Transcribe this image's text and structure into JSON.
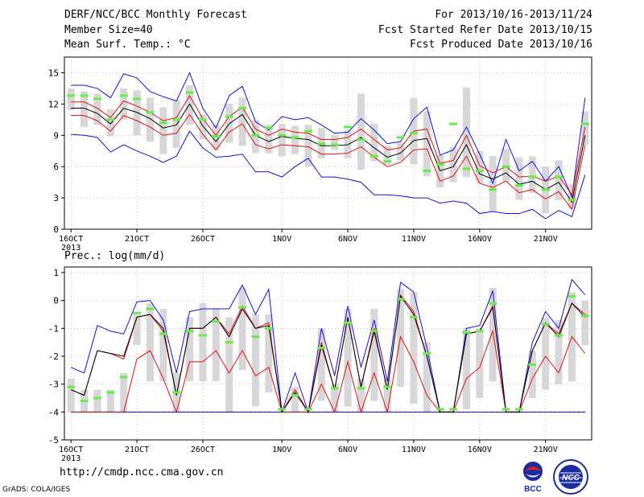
{
  "header": {
    "left": [
      "DERF/NCC/BCC Monthly Forecast",
      "Member Size=40",
      "Mean Surf. Temp.: °C"
    ],
    "right": [
      "For 2013/10/16-2013/11/24",
      "Fcst Started Refer Date 2013/10/15",
      "Fcst Produced Date 2013/10/16"
    ]
  },
  "footer": {
    "url": "http://cmdp.ncc.cma.gov.cn",
    "credit": "GrADS: COLA/IGES"
  },
  "logos": {
    "left": "BCC",
    "right": "NCC"
  },
  "colors": {
    "box": "#d7d7d9",
    "mean": "#66ee44",
    "median": "#000000",
    "quartile": "#e01010",
    "extreme": "#1010e0",
    "floor": "#1010e0"
  },
  "chart_data": [
    {
      "type": "box",
      "title": "Mean Surf. Temp.: °C",
      "ylim": [
        0,
        16.5
      ],
      "yticks": [
        0,
        3,
        6,
        9,
        12,
        15
      ],
      "xlim": [
        0,
        40
      ],
      "xticks": [
        {
          "day": 0.5,
          "label": "16OCT",
          "sub": "2013"
        },
        {
          "day": 5.5,
          "label": "21OCT"
        },
        {
          "day": 10.5,
          "label": "26OCT"
        },
        {
          "day": 16.5,
          "label": "1NOV"
        },
        {
          "day": 21.5,
          "label": "6NOV"
        },
        {
          "day": 26.5,
          "label": "11NOV"
        },
        {
          "day": 31.5,
          "label": "16NOV"
        },
        {
          "day": 36.5,
          "label": "21NOV"
        }
      ],
      "days": [
        "10/16",
        "10/17",
        "10/18",
        "10/19",
        "10/20",
        "10/21",
        "10/22",
        "10/23",
        "10/24",
        "10/25",
        "10/26",
        "10/27",
        "10/28",
        "10/29",
        "10/30",
        "10/31",
        "11/01",
        "11/02",
        "11/03",
        "11/04",
        "11/05",
        "11/06",
        "11/07",
        "11/08",
        "11/09",
        "11/10",
        "11/11",
        "11/12",
        "11/13",
        "11/14",
        "11/15",
        "11/16",
        "11/17",
        "11/18",
        "11/19",
        "11/20",
        "11/21",
        "11/22",
        "11/23",
        "11/24"
      ],
      "max": [
        13.8,
        13.8,
        13.5,
        12.6,
        14.9,
        14.5,
        13.2,
        12.7,
        12.3,
        15.0,
        11.6,
        9.7,
        12.8,
        13.7,
        10.3,
        9.5,
        10.8,
        10.5,
        10.7,
        10.0,
        9.2,
        9.3,
        10.6,
        9.5,
        8.2,
        8.4,
        10.6,
        11.7,
        7.1,
        7.6,
        9.8,
        7.2,
        4.4,
        8.6,
        5.6,
        6.5,
        4.6,
        6.0,
        3.1,
        12.6
      ],
      "q3": [
        12.2,
        12.2,
        11.6,
        10.7,
        12.3,
        11.8,
        11.2,
        10.4,
        10.7,
        12.8,
        10.6,
        9.0,
        10.8,
        11.7,
        9.6,
        9.0,
        9.6,
        9.3,
        9.2,
        8.6,
        8.6,
        8.8,
        9.6,
        8.6,
        7.6,
        7.8,
        9.4,
        9.6,
        6.3,
        6.6,
        9.0,
        6.1,
        5.4,
        6.0,
        5.0,
        5.1,
        4.6,
        5.1,
        3.3,
        9.8
      ],
      "median": [
        11.6,
        11.6,
        11.1,
        10.1,
        11.6,
        11.2,
        10.6,
        9.7,
        10.0,
        12.0,
        9.9,
        8.4,
        10.1,
        11.0,
        9.0,
        8.4,
        8.9,
        8.7,
        8.6,
        8.0,
        8.0,
        8.1,
        8.8,
        7.8,
        6.9,
        7.3,
        8.5,
        8.7,
        5.6,
        6.0,
        8.1,
        5.3,
        4.8,
        5.4,
        4.3,
        4.6,
        3.8,
        4.5,
        2.6,
        9.0
      ],
      "q1": [
        10.9,
        10.9,
        10.4,
        9.4,
        10.9,
        10.4,
        9.8,
        9.0,
        9.2,
        11.0,
        9.1,
        7.6,
        9.3,
        10.1,
        8.1,
        7.7,
        8.1,
        8.0,
        7.9,
        7.2,
        7.2,
        7.3,
        7.9,
        6.9,
        6.0,
        6.4,
        7.6,
        7.7,
        4.6,
        5.1,
        7.0,
        4.4,
        4.0,
        4.6,
        3.5,
        3.8,
        2.9,
        3.6,
        1.9,
        8.1
      ],
      "min": [
        9.1,
        9.0,
        8.8,
        7.4,
        8.1,
        7.5,
        7.0,
        6.4,
        7.0,
        9.4,
        7.8,
        6.9,
        7.0,
        7.2,
        5.5,
        5.5,
        5.0,
        6.0,
        6.8,
        5.0,
        5.0,
        4.8,
        4.5,
        3.3,
        3.3,
        3.2,
        3.0,
        3.0,
        2.5,
        2.7,
        2.5,
        1.5,
        1.7,
        1.5,
        1.5,
        1.9,
        1.0,
        1.8,
        1.2,
        5.2
      ],
      "box_hi": [
        13.5,
        13.2,
        13.0,
        11.5,
        13.5,
        13.3,
        12.6,
        11.7,
        12.4,
        13.8,
        11.0,
        10.0,
        12.0,
        12.6,
        10.5,
        10.0,
        10.1,
        9.9,
        10.0,
        9.7,
        9.0,
        9.5,
        13.0,
        10.1,
        8.0,
        8.3,
        12.6,
        11.3,
        7.1,
        7.9,
        13.6,
        7.5,
        7.0,
        7.7,
        6.9,
        7.0,
        6.0,
        6.6,
        4.3,
        11.3
      ],
      "box_lo": [
        11.4,
        9.8,
        10.0,
        8.9,
        10.5,
        9.0,
        8.4,
        7.2,
        7.8,
        10.0,
        8.6,
        7.6,
        8.3,
        8.0,
        7.3,
        7.3,
        7.0,
        7.2,
        6.0,
        6.8,
        7.6,
        6.8,
        5.7,
        6.5,
        6.2,
        6.6,
        6.2,
        5.1,
        4.0,
        4.5,
        5.0,
        4.4,
        1.7,
        4.5,
        2.8,
        3.5,
        1.5,
        2.8,
        2.0,
        8.1
      ],
      "mean": [
        12.8,
        12.8,
        12.5,
        10.5,
        12.8,
        12.5,
        11.2,
        10.2,
        10.5,
        13.1,
        10.5,
        8.9,
        10.8,
        11.6,
        9.0,
        9.7,
        9.0,
        8.8,
        9.4,
        8.2,
        8.1,
        9.8,
        8.6,
        7.0,
        6.5,
        8.8,
        9.2,
        5.6,
        6.2,
        10.1,
        5.8,
        5.6,
        3.8,
        6.0,
        4.2,
        5.0,
        3.8,
        5.0,
        2.8,
        10.1
      ]
    },
    {
      "type": "box",
      "title": "Prec.: log(mm/d)",
      "ylim": [
        -5,
        1.2
      ],
      "yticks": [
        -5,
        -4,
        -3,
        -2,
        -1,
        0,
        1
      ],
      "xlim": [
        0,
        40
      ],
      "xticks": [
        {
          "day": 0.5,
          "label": "16OCT",
          "sub": "2013"
        },
        {
          "day": 5.5,
          "label": "21OCT"
        },
        {
          "day": 10.5,
          "label": "26OCT"
        },
        {
          "day": 16.5,
          "label": "1NOV"
        },
        {
          "day": 21.5,
          "label": "6NOV"
        },
        {
          "day": 26.5,
          "label": "11NOV"
        },
        {
          "day": 31.5,
          "label": "16NOV"
        },
        {
          "day": 36.5,
          "label": "21NOV"
        }
      ],
      "floor": -4,
      "max": [
        -2.4,
        -2.6,
        -0.9,
        -1.1,
        -1.2,
        -0.05,
        0.0,
        -0.7,
        -2.6,
        -0.4,
        -0.3,
        -0.3,
        -0.3,
        0.55,
        -0.5,
        0.4,
        -4.0,
        -2.6,
        -4.0,
        -1.0,
        -2.7,
        -0.2,
        -2.4,
        -0.7,
        -2.9,
        0.65,
        0.3,
        -1.7,
        -4.0,
        -4.0,
        -1.0,
        -0.9,
        0.35,
        -4.0,
        -4.0,
        -1.5,
        -0.4,
        -1.0,
        0.75,
        0.2
      ],
      "q3": [
        -3.2,
        -3.4,
        -1.8,
        -1.9,
        -2.1,
        -0.6,
        -0.5,
        -1.1,
        -3.4,
        -1.0,
        -1.0,
        -0.6,
        -1.2,
        -0.2,
        -1.0,
        -0.8,
        -4.0,
        -3.2,
        -4.0,
        -1.5,
        -3.2,
        -0.6,
        -3.1,
        -1.0,
        -3.2,
        0.2,
        -0.4,
        -2.0,
        -4.0,
        -4.0,
        -1.2,
        -1.1,
        -0.2,
        -4.0,
        -4.0,
        -1.8,
        -0.8,
        -1.2,
        -0.1,
        -0.5
      ],
      "median": [
        -3.2,
        -3.4,
        -1.8,
        -1.9,
        -2.0,
        -0.6,
        -0.5,
        -1.0,
        -3.4,
        -1.0,
        -1.0,
        -0.6,
        -1.3,
        -0.3,
        -1.0,
        -0.9,
        -4.0,
        -3.3,
        -4.0,
        -1.6,
        -3.2,
        -0.6,
        -3.1,
        -1.1,
        -3.2,
        0.15,
        -0.5,
        -2.0,
        -4.0,
        -4.0,
        -1.2,
        -1.1,
        -0.25,
        -4.0,
        -4.0,
        -1.8,
        -0.8,
        -1.3,
        -0.1,
        -0.6
      ],
      "q1": [
        -4.0,
        -4.0,
        -4.0,
        -4.0,
        -4.0,
        -2.1,
        -1.8,
        -2.8,
        -4.0,
        -2.2,
        -2.2,
        -1.8,
        -2.6,
        -1.8,
        -2.7,
        -2.4,
        -4.0,
        -4.0,
        -4.0,
        -3.0,
        -4.0,
        -2.2,
        -4.0,
        -2.6,
        -4.0,
        -1.3,
        -2.2,
        -3.4,
        -4.0,
        -4.0,
        -2.8,
        -2.4,
        -1.1,
        -4.0,
        -4.0,
        -2.8,
        -2.0,
        -2.6,
        -1.3,
        -1.9
      ],
      "min": [
        -4.0,
        -4.0,
        -4.0,
        -4.0,
        -4.0,
        -4.0,
        -4.0,
        -4.0,
        -4.0,
        -4.0,
        -4.0,
        -4.0,
        -4.0,
        -4.0,
        -4.0,
        -4.0,
        -4.0,
        -4.0,
        -4.0,
        -4.0,
        -4.0,
        -4.0,
        -4.0,
        -4.0,
        -4.0,
        -4.0,
        -4.0,
        -4.0,
        -4.0,
        -4.0,
        -4.0,
        -4.0,
        -4.0,
        -4.0,
        -4.0,
        -4.0,
        -4.0,
        -4.0,
        -4.0,
        -4.0
      ],
      "box_hi": [
        -2.8,
        -3.2,
        -3.2,
        -3.2,
        -2.6,
        -0.5,
        -0.1,
        -0.3,
        -2.6,
        -0.6,
        -0.1,
        -0.3,
        -0.6,
        0.45,
        -0.5,
        -0.5,
        -4.0,
        -3.1,
        -4.0,
        -1.0,
        -3.0,
        -0.3,
        -2.8,
        -0.3,
        -2.8,
        0.4,
        0.3,
        -1.5,
        -4.0,
        -4.0,
        -1.0,
        -1.0,
        0.45,
        -4.0,
        -4.0,
        -1.8,
        -0.6,
        -0.7,
        0.3,
        0.0
      ],
      "box_lo": [
        -4.0,
        -4.0,
        -4.0,
        -4.0,
        -4.0,
        -1.6,
        -2.9,
        -2.9,
        -4.0,
        -2.9,
        -2.9,
        -2.9,
        -4.0,
        -2.5,
        -3.8,
        -3.3,
        -4.0,
        -4.0,
        -4.0,
        -3.6,
        -4.0,
        -3.8,
        -4.0,
        -3.6,
        -4.0,
        -3.1,
        -3.7,
        -4.0,
        -4.0,
        -4.0,
        -3.9,
        -3.5,
        -2.9,
        -4.0,
        -4.0,
        -3.5,
        -3.2,
        -3.0,
        -2.9,
        -1.6
      ],
      "mean": [
        -3.1,
        -3.6,
        -3.5,
        -3.3,
        -2.75,
        -0.45,
        -0.3,
        -1.2,
        -3.3,
        -1.1,
        -1.25,
        -0.75,
        -1.5,
        -0.25,
        -1.3,
        -1.0,
        -3.9,
        -3.4,
        -3.9,
        -1.7,
        -3.15,
        -0.8,
        -3.15,
        -1.1,
        -3.1,
        0.05,
        -0.6,
        -1.9,
        -3.9,
        -3.9,
        -1.15,
        -1.1,
        -0.1,
        -3.9,
        -3.9,
        -2.3,
        -0.85,
        -1.25,
        0.15,
        -0.55
      ]
    }
  ]
}
